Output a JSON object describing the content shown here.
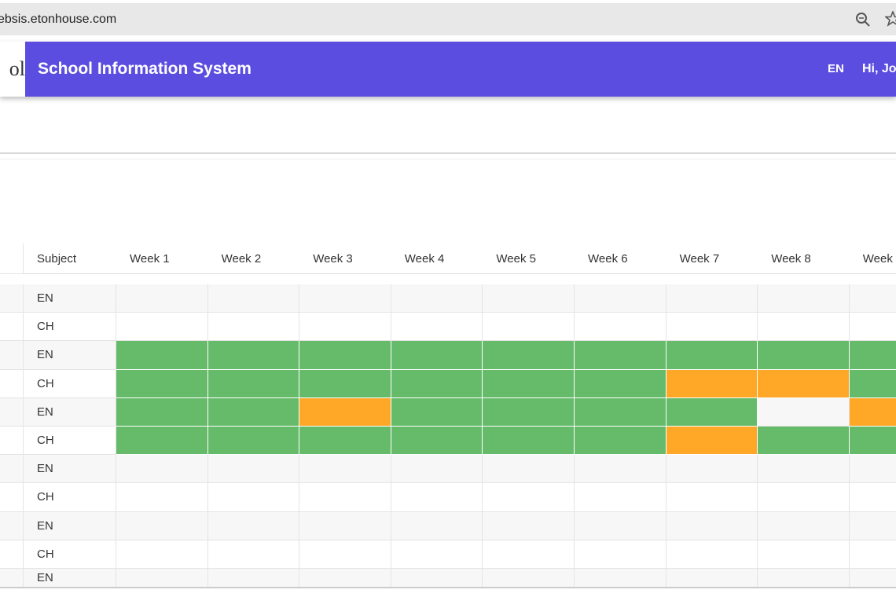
{
  "browser": {
    "url": "ebsis.etonhouse.com"
  },
  "header": {
    "logo_text": "ol",
    "title": "School Information System",
    "language": "EN",
    "greeting": "Hi, Jo",
    "color": "#5b4de0"
  },
  "table": {
    "columns": [
      "Subject",
      "Week 1",
      "Week 2",
      "Week 3",
      "Week 4",
      "Week 5",
      "Week 6",
      "Week 7",
      "Week 8",
      "Week"
    ],
    "status_colors": {
      "green": "#66bb6a",
      "orange": "#ffa726"
    },
    "rows": [
      {
        "subject": "EN",
        "weeks": [
          null,
          null,
          null,
          null,
          null,
          null,
          null,
          null,
          null
        ]
      },
      {
        "subject": "CH",
        "weeks": [
          null,
          null,
          null,
          null,
          null,
          null,
          null,
          null,
          null
        ]
      },
      {
        "subject": "EN",
        "weeks": [
          "green",
          "green",
          "green",
          "green",
          "green",
          "green",
          "green",
          "green",
          "green"
        ]
      },
      {
        "subject": "CH",
        "weeks": [
          "green",
          "green",
          "green",
          "green",
          "green",
          "green",
          "orange",
          "orange",
          "green"
        ]
      },
      {
        "subject": "EN",
        "weeks": [
          "green",
          "green",
          "orange",
          "green",
          "green",
          "green",
          "green",
          null,
          "orange"
        ]
      },
      {
        "subject": "CH",
        "weeks": [
          "green",
          "green",
          "green",
          "green",
          "green",
          "green",
          "orange",
          "green",
          "green"
        ]
      },
      {
        "subject": "EN",
        "weeks": [
          null,
          null,
          null,
          null,
          null,
          null,
          null,
          null,
          null
        ]
      },
      {
        "subject": "CH",
        "weeks": [
          null,
          null,
          null,
          null,
          null,
          null,
          null,
          null,
          null
        ]
      },
      {
        "subject": "EN",
        "weeks": [
          null,
          null,
          null,
          null,
          null,
          null,
          null,
          null,
          null
        ]
      },
      {
        "subject": "CH",
        "weeks": [
          null,
          null,
          null,
          null,
          null,
          null,
          null,
          null,
          null
        ]
      },
      {
        "subject": "EN",
        "weeks": [
          null,
          null,
          null,
          null,
          null,
          null,
          null,
          null,
          null
        ]
      }
    ]
  }
}
